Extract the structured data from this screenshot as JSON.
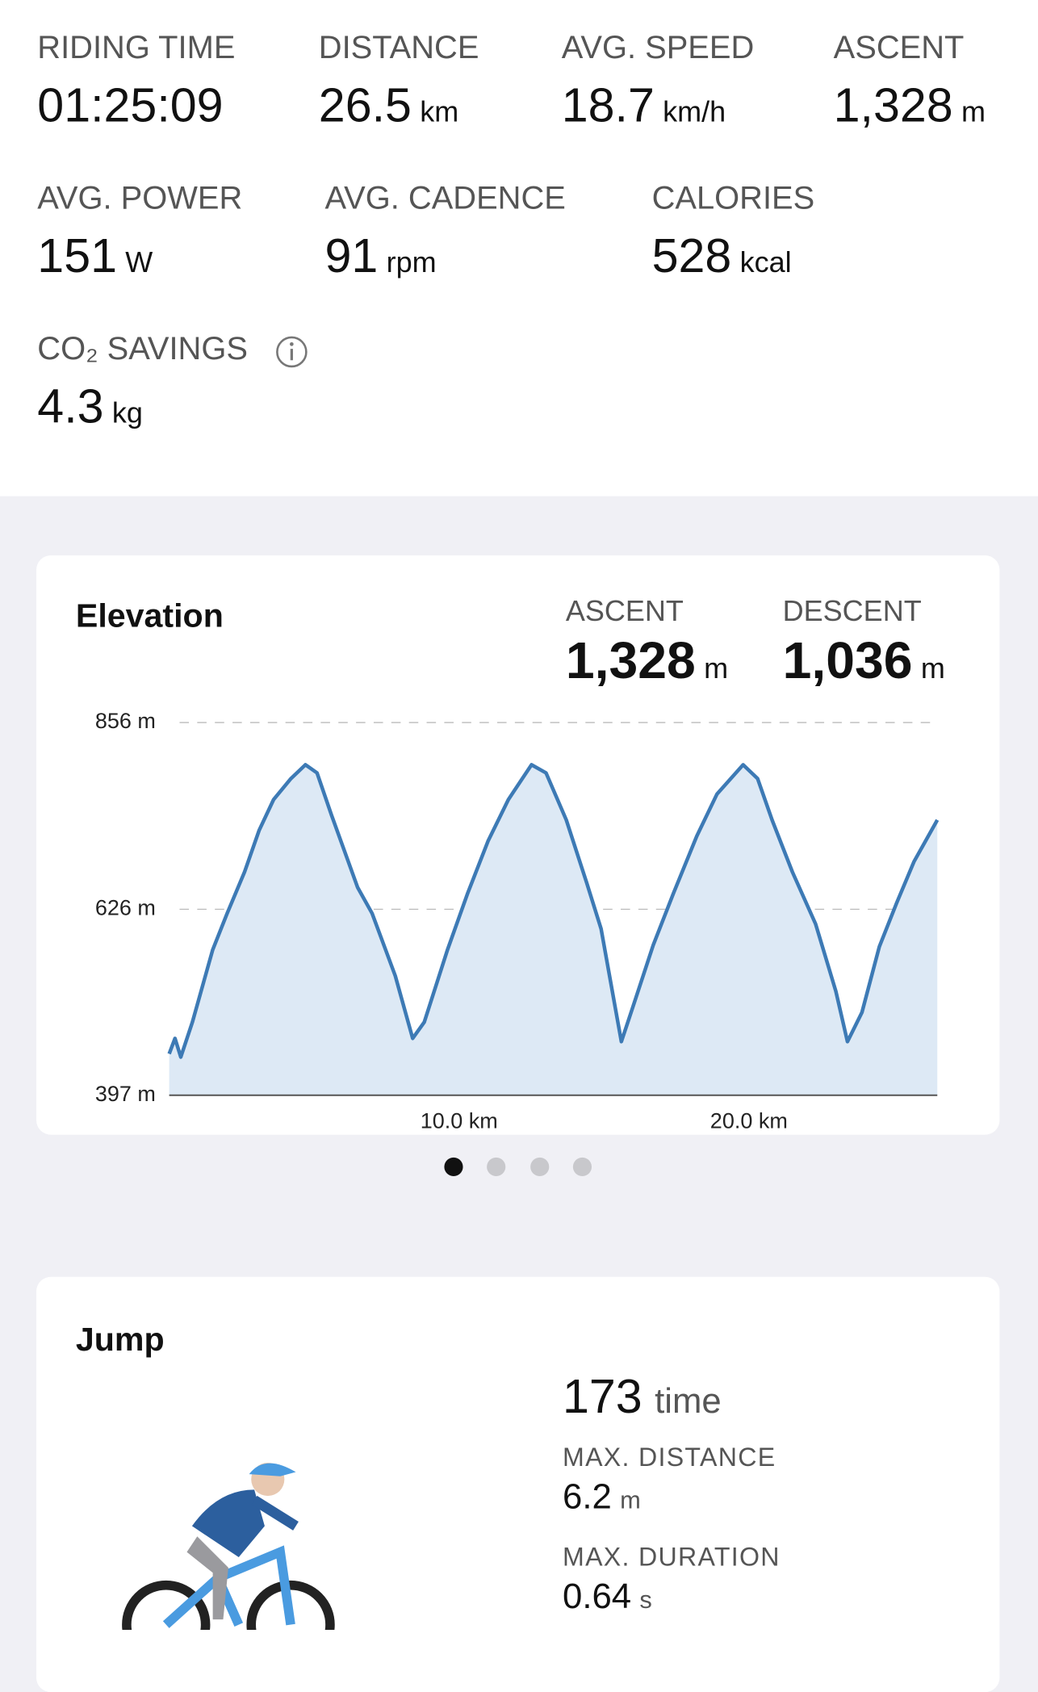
{
  "stats": [
    {
      "label": "RIDING TIME",
      "value": "01:25:09"
    },
    {
      "label": "DISTANCE",
      "value": "26.5",
      "unit": "km"
    },
    {
      "label": "AVG. SPEED",
      "value": "18.7",
      "unit": "km/h"
    },
    {
      "label": "ASCENT",
      "value": "1,328",
      "unit": "m"
    },
    {
      "label": "AVG. POWER",
      "value": "151",
      "unit": "W"
    },
    {
      "label": "AVG. CADENCE",
      "value": "91",
      "unit": "rpm"
    },
    {
      "label": "CALORIES",
      "value": "528",
      "unit": "kcal"
    },
    {
      "label": "CO₂ SAVINGS",
      "value": "4.3",
      "unit": "kg"
    }
  ],
  "elevation_summary": [
    {
      "label": "ASCENT",
      "value": "1,328",
      "unit": "m"
    },
    {
      "label": "DESCENT",
      "value": "1,036",
      "unit": "m"
    }
  ],
  "chart_data": {
    "type": "area",
    "title": "Elevation",
    "color": "#3d7ab5",
    "fill": "#dde9f5",
    "grid": true,
    "x": [
      0,
      0.2,
      0.4,
      0.8,
      1.5,
      2.0,
      2.6,
      3.1,
      3.6,
      4.2,
      4.7,
      5.1,
      5.6,
      6.5,
      7.0,
      7.8,
      8.4,
      8.8,
      9.6,
      10.3,
      11.0,
      11.7,
      12.5,
      13.0,
      13.7,
      14.4,
      14.9,
      15.6,
      16.0,
      16.7,
      17.4,
      18.2,
      18.9,
      19.8,
      20.3,
      20.8,
      21.5,
      22.3,
      23.0,
      23.4,
      23.9,
      24.5,
      25.1,
      25.7,
      26.5
    ],
    "values": [
      448,
      467,
      444,
      487,
      576,
      621,
      672,
      723,
      761,
      787,
      804,
      794,
      742,
      653,
      621,
      544,
      467,
      487,
      576,
      646,
      710,
      761,
      804,
      794,
      736,
      659,
      602,
      463,
      506,
      582,
      646,
      716,
      768,
      804,
      787,
      736,
      672,
      608,
      525,
      463,
      499,
      580,
      634,
      685,
      736
    ],
    "xlim": [
      0,
      26.5
    ],
    "ylim": [
      397,
      856
    ],
    "xticks": [
      {
        "value": 10,
        "label": "10.0 km"
      },
      {
        "value": 20,
        "label": "20.0 km"
      }
    ],
    "yticks": [
      {
        "value": 397,
        "label": "397 m"
      },
      {
        "value": 626,
        "label": "626 m"
      },
      {
        "value": 856,
        "label": "856 m"
      }
    ]
  },
  "jump": {
    "title": "Jump",
    "count": "173",
    "count_unit": "time",
    "metrics": [
      {
        "label": "MAX. DISTANCE",
        "value": "6.2",
        "unit": "m"
      },
      {
        "label": "MAX. DURATION",
        "value": "0.64",
        "unit": "s"
      }
    ]
  }
}
